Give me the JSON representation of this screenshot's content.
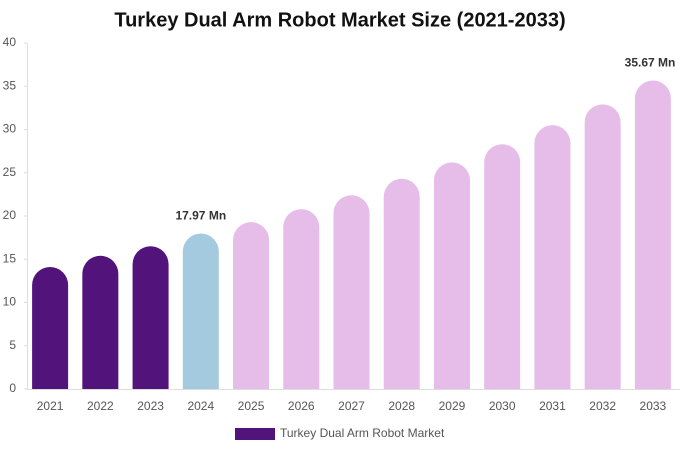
{
  "chart_data": {
    "type": "bar",
    "title": "Turkey Dual Arm Robot Market Size (2021-2033)",
    "categories": [
      "2021",
      "2022",
      "2023",
      "2024",
      "2025",
      "2026",
      "2027",
      "2028",
      "2029",
      "2030",
      "2031",
      "2032",
      "2033"
    ],
    "series": [
      {
        "name": "Turkey Dual Arm Robot Market",
        "color": "#52137a",
        "values": [
          14.1,
          15.4,
          16.5,
          17.97,
          19.3,
          20.8,
          22.4,
          24.3,
          26.2,
          28.3,
          30.5,
          32.9,
          35.67
        ],
        "colors": [
          "#52137a",
          "#52137a",
          "#52137a",
          "#a3cadf",
          "#e6bde9",
          "#e6bde9",
          "#e6bde9",
          "#e6bde9",
          "#e6bde9",
          "#e6bde9",
          "#e6bde9",
          "#e6bde9",
          "#e6bde9"
        ],
        "value_labels": [
          null,
          null,
          null,
          "17.97 Mn",
          null,
          null,
          null,
          null,
          null,
          null,
          null,
          null,
          "35.67 Mn"
        ]
      }
    ],
    "ylim": [
      0,
      40
    ],
    "yticks": [
      0,
      5,
      10,
      15,
      20,
      25,
      30,
      35,
      40
    ]
  }
}
